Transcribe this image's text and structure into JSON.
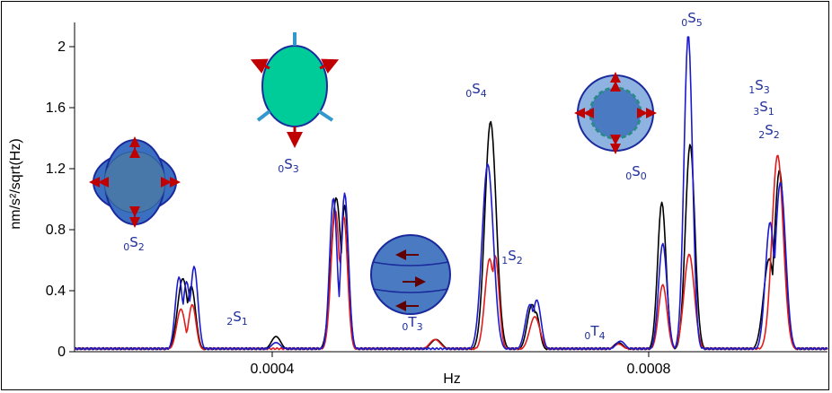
{
  "chart_data": {
    "type": "line",
    "xlabel": "Hz",
    "ylabel": "nm/s²/sqrt(Hz)",
    "xlim": [
      0.00019,
      0.00099
    ],
    "ylim": [
      0,
      2.1
    ],
    "x_ticks": [
      0.0004,
      0.0008
    ],
    "x_tick_labels": [
      "0.0004",
      "0.0008"
    ],
    "y_ticks": [
      0,
      0.4,
      0.8,
      1.2,
      1.6,
      2
    ],
    "y_tick_labels": [
      "0",
      "0.4",
      "0.8",
      "1.2",
      "1.6",
      "2"
    ],
    "baseline": 0.02,
    "series": [
      {
        "color": "#000000",
        "peaks": [
          [
            0.000305,
            0.47,
            5.5e-06
          ],
          [
            0.000314,
            0.42,
            4.5e-06
          ],
          [
            0.000404,
            0.09,
            5e-06
          ],
          [
            0.000468,
            1.0,
            5.5e-06
          ],
          [
            0.000477,
            0.95,
            4e-06
          ],
          [
            0.000574,
            0.07,
            6e-06
          ],
          [
            0.000632,
            1.5,
            6e-06
          ],
          [
            0.000676,
            0.3,
            5e-06
          ],
          [
            0.00068,
            0.25,
            4e-06
          ],
          [
            0.000768,
            0.05,
            5e-06
          ],
          [
            0.000814,
            0.97,
            4.5e-06
          ],
          [
            0.000844,
            1.35,
            5e-06
          ],
          [
            0.000928,
            0.6,
            6e-06
          ],
          [
            0.000939,
            1.18,
            5.5e-06
          ]
        ]
      },
      {
        "color": "#1a1acc",
        "peaks": [
          [
            0.000301,
            0.48,
            4e-06
          ],
          [
            0.000309,
            0.45,
            4e-06
          ],
          [
            0.000317,
            0.55,
            4e-06
          ],
          [
            0.000404,
            0.05,
            5e-06
          ],
          [
            0.000465,
            1.0,
            4e-06
          ],
          [
            0.000477,
            1.03,
            4e-06
          ],
          [
            0.000629,
            1.22,
            6e-06
          ],
          [
            0.000674,
            0.3,
            5e-06
          ],
          [
            0.000681,
            0.33,
            4.5e-06
          ],
          [
            0.00077,
            0.06,
            5e-06
          ],
          [
            0.000815,
            0.7,
            4.5e-06
          ],
          [
            0.000842,
            2.07,
            4.5e-06
          ],
          [
            0.000929,
            0.84,
            5e-06
          ],
          [
            0.00094,
            1.1,
            5.5e-06
          ]
        ]
      },
      {
        "color": "#e01c1c",
        "peaks": [
          [
            0.000303,
            0.27,
            4.5e-06
          ],
          [
            0.000315,
            0.3,
            4e-06
          ],
          [
            0.000467,
            0.92,
            4.5e-06
          ],
          [
            0.000476,
            0.88,
            4e-06
          ],
          [
            0.000573,
            0.07,
            6e-06
          ],
          [
            0.000631,
            0.6,
            5e-06
          ],
          [
            0.000637,
            0.62,
            4e-06
          ],
          [
            0.000679,
            0.22,
            5.5e-06
          ],
          [
            0.000768,
            0.04,
            5e-06
          ],
          [
            0.000815,
            0.43,
            4.5e-06
          ],
          [
            0.000843,
            0.63,
            5.5e-06
          ],
          [
            0.000937,
            1.28,
            6e-06
          ]
        ]
      }
    ],
    "mode_labels": [
      {
        "pre": "0",
        "main": "S",
        "sub": "2"
      },
      {
        "pre": "2",
        "main": "S",
        "sub": "1"
      },
      {
        "pre": "0",
        "main": "S",
        "sub": "3"
      },
      {
        "pre": "0",
        "main": "T",
        "sub": "3"
      },
      {
        "pre": "0",
        "main": "S",
        "sub": "4"
      },
      {
        "pre": "1",
        "main": "S",
        "sub": "2"
      },
      {
        "pre": "0",
        "main": "T",
        "sub": "4"
      },
      {
        "pre": "0",
        "main": "S",
        "sub": "0"
      },
      {
        "pre": "0",
        "main": "S",
        "sub": "5"
      },
      {
        "pre": "1",
        "main": "S",
        "sub": "3"
      },
      {
        "pre": "3",
        "main": "S",
        "sub": "1"
      },
      {
        "pre": "2",
        "main": "S",
        "sub": "2"
      }
    ]
  }
}
